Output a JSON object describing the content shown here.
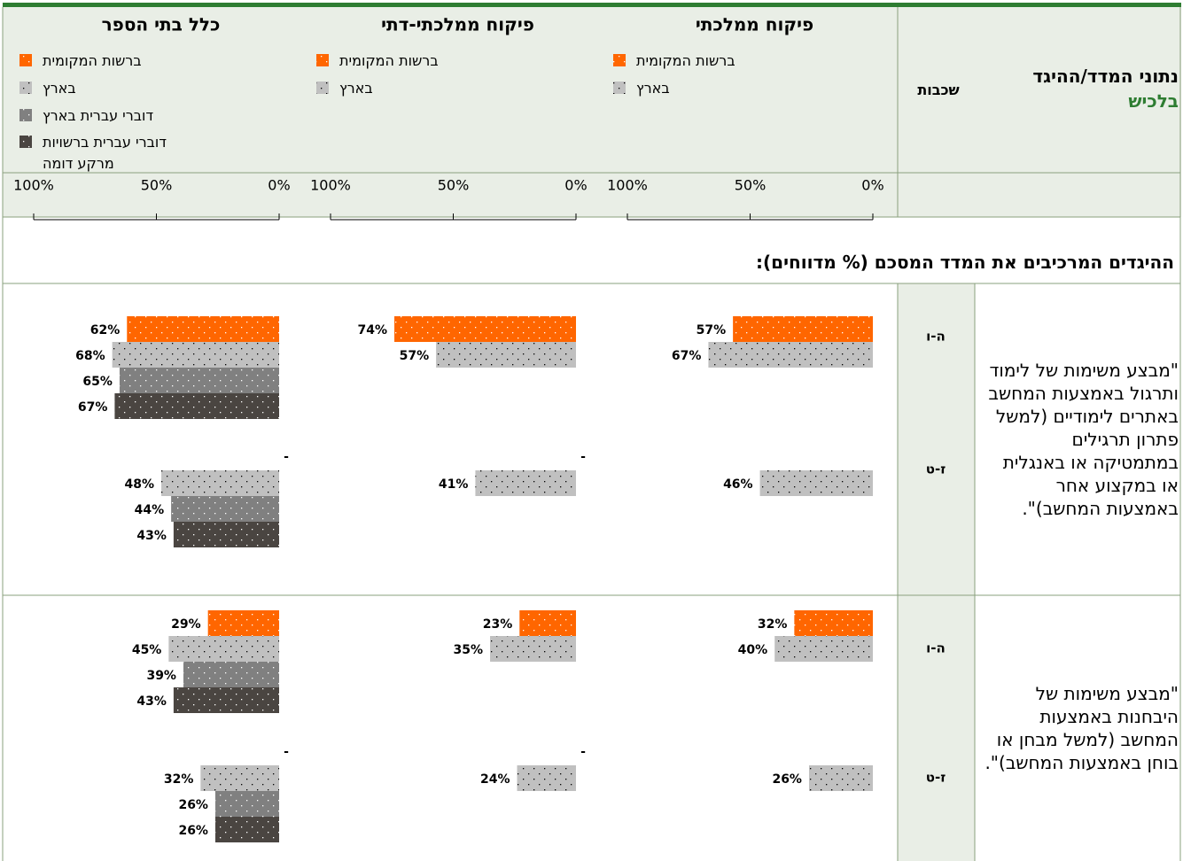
{
  "header": {
    "title": "נתוני המדד/ההיגד",
    "location": "בלכיש",
    "grades_label": "שכבות"
  },
  "axis": {
    "xlim": [
      0,
      100
    ],
    "xticks": [
      {
        "value": 100,
        "label": "100%"
      },
      {
        "value": 50,
        "label": "50%"
      },
      {
        "value": 0,
        "label": "0%"
      }
    ]
  },
  "groups": [
    {
      "title": "פיקוח ממלכתי",
      "series": [
        {
          "name": "ברשות המקומית",
          "color": "#ff6600"
        },
        {
          "name": "בארץ",
          "color": "#c0c0c0"
        }
      ]
    },
    {
      "title": "פיקוח ממלכתי-דתי",
      "series": [
        {
          "name": "ברשות המקומית",
          "color": "#ff6600"
        },
        {
          "name": "בארץ",
          "color": "#c0c0c0"
        }
      ]
    },
    {
      "title": "כלל בתי הספר",
      "series": [
        {
          "name": "ברשות המקומית",
          "color": "#ff6600"
        },
        {
          "name": "בארץ",
          "color": "#c0c0c0"
        },
        {
          "name": "דוברי עברית בארץ",
          "color": "#808080"
        },
        {
          "name": "דוברי עברית ברשויות מרקע דומה",
          "color": "#4a4541"
        }
      ]
    }
  ],
  "section_title": "ההיגדים המרכיבים את המדד המסכם (% מדווחים):",
  "rows": [
    {
      "statement": "\"מבצע משימות של לימוד ותרגול באמצעות המחשב באתרים לימודיים (למשל פתרון תרגילים במתמטיקה או באנגלית או במקצוע אחר באמצעות המחשב)\".",
      "grades": [
        {
          "grade": "ה-ו",
          "groups": [
            {
              "values": [
                57,
                67
              ],
              "value_labels": [
                "57%",
                "67%"
              ]
            },
            {
              "values": [
                74,
                57
              ],
              "value_labels": [
                "74%",
                "57%"
              ]
            },
            {
              "values": [
                62,
                68,
                65,
                67
              ],
              "value_labels": [
                "62%",
                "68%",
                "65%",
                "67%"
              ]
            }
          ]
        },
        {
          "grade": "ז-ט",
          "groups": [
            {
              "values": [
                null,
                46
              ],
              "value_labels": [
                null,
                "46%"
              ]
            },
            {
              "values": [
                null,
                41
              ],
              "value_labels": [
                "-",
                "41%"
              ]
            },
            {
              "values": [
                null,
                48,
                44,
                43
              ],
              "value_labels": [
                "-",
                "48%",
                "44%",
                "43%"
              ]
            }
          ]
        }
      ]
    },
    {
      "statement": "\"מבצע משימות של היבחנות באמצעות המחשב (למשל מבחן או בוחן באמצעות המחשב)\".",
      "grades": [
        {
          "grade": "ה-ו",
          "groups": [
            {
              "values": [
                32,
                40
              ],
              "value_labels": [
                "32%",
                "40%"
              ]
            },
            {
              "values": [
                23,
                35
              ],
              "value_labels": [
                "23%",
                "35%"
              ]
            },
            {
              "values": [
                29,
                45,
                39,
                43
              ],
              "value_labels": [
                "29%",
                "45%",
                "39%",
                "43%"
              ]
            }
          ]
        },
        {
          "grade": "ז-ט",
          "groups": [
            {
              "values": [
                null,
                26
              ],
              "value_labels": [
                null,
                "26%"
              ]
            },
            {
              "values": [
                null,
                24
              ],
              "value_labels": [
                "-",
                "24%"
              ]
            },
            {
              "values": [
                null,
                32,
                26,
                26
              ],
              "value_labels": [
                "-",
                "32%",
                "26%",
                "26%"
              ]
            }
          ]
        }
      ]
    }
  ]
}
